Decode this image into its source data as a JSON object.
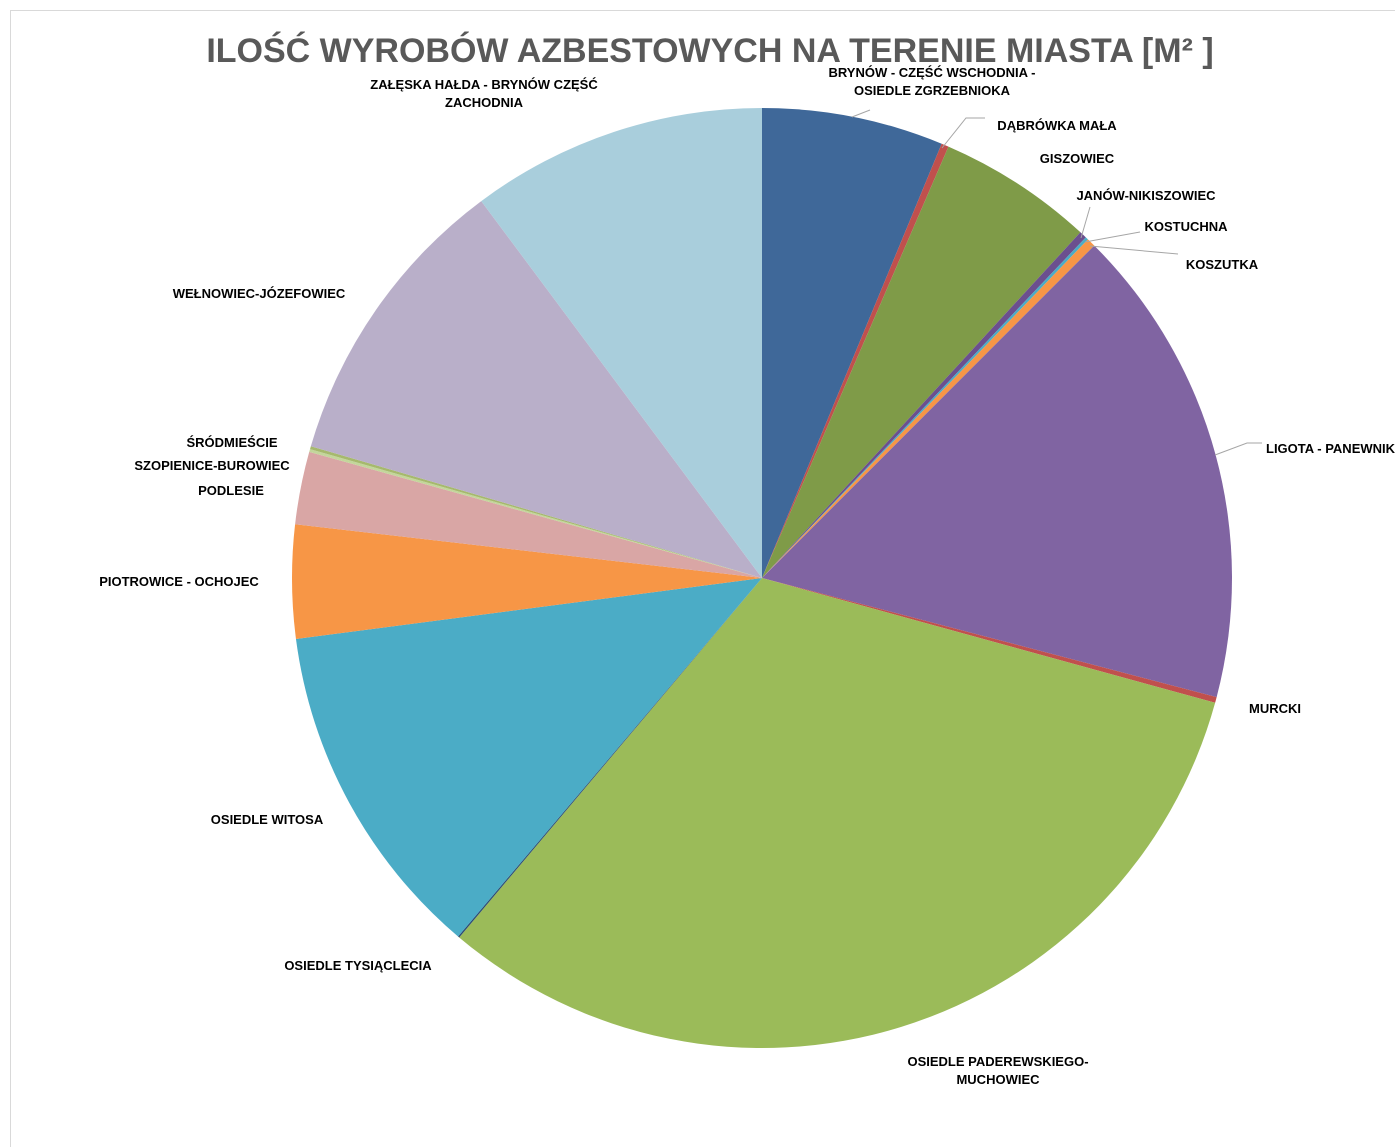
{
  "chart_data": {
    "type": "pie",
    "title": "ILOŚĆ WYROBÓW AZBESTOWYCH NA TERENIE MIASTA [M² ]",
    "categories": [
      "BRYNÓW - CZĘŚĆ WSCHODNIA - OSIEDLE ZGRZEBNIOKA",
      "DĄBRÓWKA MAŁA",
      "GISZOWIEC",
      "JANÓW-NIKISZOWIEC",
      "KOSTUCHNA",
      "KOSZUTKA",
      "LIGOTA - PANEWNIKI",
      "MURCKI",
      "OSIEDLE PADEREWSKIEGO-MUCHOWIEC",
      "OSIEDLE TYSIĄCLECIA",
      "OSIEDLE WITOSA",
      "PIOTROWICE - OCHOJEC",
      "PODLESIE",
      "SZOPIENICE-BUROWIEC",
      "ŚRÓDMIEŚCIE",
      "WEŁNOWIEC-JÓZEFOWIEC",
      "ZAŁĘSKA HAŁDA - BRYNÓW CZĘŚĆ ZACHODNIA"
    ],
    "values": [
      6.25,
      0.25,
      5.36,
      0.25,
      0.1,
      0.3,
      16.6,
      0.2,
      31.9,
      0.05,
      11.75,
      3.9,
      2.5,
      0.1,
      0.1,
      10.3,
      10.2
    ],
    "colors": [
      "#3f6899",
      "#c0504d",
      "#7f9b48",
      "#6b4f8f",
      "#4bacc6",
      "#f79646",
      "#8064a2",
      "#c0504d",
      "#9bbb59",
      "#2c4d75",
      "#4bacc6",
      "#f79646",
      "#d9a6a5",
      "#c3d69b",
      "#a6b96d",
      "#b9afc9",
      "#a9cedc"
    ]
  }
}
